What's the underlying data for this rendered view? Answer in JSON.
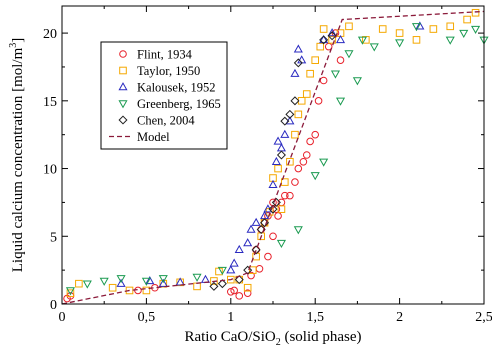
{
  "chart_data": {
    "type": "scatter",
    "title": "",
    "xlabel_parts": {
      "pre": "Ratio CaO/SiO",
      "sub": "2",
      "post": " (solid phase)"
    },
    "ylabel_parts": {
      "pre": "Liquid calcium concentration [mol/m",
      "sup": "3",
      "post": "]"
    },
    "xlim": [
      0,
      2.5
    ],
    "ylim": [
      0,
      22
    ],
    "x_ticks": [
      {
        "value": 0,
        "label": "0"
      },
      {
        "value": 0.5,
        "label": "0,5"
      },
      {
        "value": 1,
        "label": "1"
      },
      {
        "value": 1.5,
        "label": "1,5"
      },
      {
        "value": 2,
        "label": "2"
      },
      {
        "value": 2.5,
        "label": "2,5"
      }
    ],
    "y_ticks": [
      {
        "value": 0,
        "label": "0"
      },
      {
        "value": 5,
        "label": "5"
      },
      {
        "value": 10,
        "label": "10"
      },
      {
        "value": 15,
        "label": "15"
      },
      {
        "value": 20,
        "label": "20"
      }
    ],
    "grid": false,
    "legend_position": "top-left",
    "series": [
      {
        "name": "Flint, 1934",
        "marker": "circle",
        "color": "#e8202a",
        "points": [
          [
            0.03,
            0.4
          ],
          [
            0.05,
            0.6
          ],
          [
            0.45,
            1.0
          ],
          [
            0.55,
            1.2
          ],
          [
            1.0,
            0.9
          ],
          [
            1.02,
            1.0
          ],
          [
            1.05,
            0.6
          ],
          [
            1.1,
            0.8
          ],
          [
            1.12,
            2.1
          ],
          [
            1.15,
            4.0
          ],
          [
            1.17,
            2.6
          ],
          [
            1.18,
            5.5
          ],
          [
            1.2,
            6.0
          ],
          [
            1.22,
            6.5
          ],
          [
            1.22,
            3.5
          ],
          [
            1.25,
            5.0
          ],
          [
            1.27,
            7.0
          ],
          [
            1.28,
            6.5
          ],
          [
            1.3,
            7.5
          ],
          [
            1.32,
            8.0
          ],
          [
            1.35,
            8.0
          ],
          [
            1.38,
            9.0
          ],
          [
            1.4,
            10.0
          ],
          [
            1.43,
            10.5
          ],
          [
            1.45,
            11.0
          ],
          [
            1.47,
            12.0
          ],
          [
            1.5,
            12.5
          ],
          [
            1.52,
            15.0
          ],
          [
            1.55,
            16.5
          ],
          [
            1.58,
            19.0
          ],
          [
            1.62,
            20.0
          ],
          [
            1.65,
            18.0
          ],
          [
            1.25,
            7.5
          ]
        ]
      },
      {
        "name": "Taylor, 1950",
        "marker": "square",
        "color": "#f5a800",
        "points": [
          [
            0.05,
            0.8
          ],
          [
            0.1,
            1.5
          ],
          [
            0.3,
            1.2
          ],
          [
            0.4,
            1.0
          ],
          [
            0.5,
            1.0
          ],
          [
            0.6,
            1.5
          ],
          [
            0.7,
            1.6
          ],
          [
            0.8,
            1.3
          ],
          [
            0.9,
            1.7
          ],
          [
            0.93,
            2.4
          ],
          [
            1.0,
            1.8
          ],
          [
            1.05,
            1.8
          ],
          [
            1.1,
            1.2
          ],
          [
            1.13,
            2.5
          ],
          [
            1.15,
            3.5
          ],
          [
            1.18,
            5.0
          ],
          [
            1.2,
            6.0
          ],
          [
            1.23,
            6.8
          ],
          [
            1.25,
            9.3
          ],
          [
            1.28,
            10.0
          ],
          [
            1.3,
            7.0
          ],
          [
            1.32,
            9.0
          ],
          [
            1.35,
            10.5
          ],
          [
            1.38,
            12.5
          ],
          [
            1.4,
            14.0
          ],
          [
            1.42,
            15.0
          ],
          [
            1.45,
            15.5
          ],
          [
            1.47,
            17.0
          ],
          [
            1.5,
            18.0
          ],
          [
            1.53,
            19.0
          ],
          [
            1.55,
            20.3
          ],
          [
            1.6,
            19.5
          ],
          [
            1.65,
            20.0
          ],
          [
            1.7,
            20.5
          ],
          [
            1.8,
            19.5
          ],
          [
            1.9,
            20.3
          ],
          [
            2.0,
            20.0
          ],
          [
            2.1,
            19.5
          ],
          [
            2.2,
            20.3
          ],
          [
            2.3,
            20.5
          ],
          [
            2.4,
            21.0
          ],
          [
            2.45,
            21.5
          ]
        ]
      },
      {
        "name": "Kalousek, 1952",
        "marker": "triangle-up",
        "color": "#2a2ac0",
        "points": [
          [
            0.35,
            1.5
          ],
          [
            0.52,
            1.7
          ],
          [
            0.6,
            1.5
          ],
          [
            0.7,
            1.6
          ],
          [
            0.85,
            1.8
          ],
          [
            1.0,
            2.5
          ],
          [
            1.02,
            3.0
          ],
          [
            1.05,
            4.0
          ],
          [
            1.1,
            4.5
          ],
          [
            1.12,
            5.5
          ],
          [
            1.15,
            6.0
          ],
          [
            1.2,
            6.5
          ],
          [
            1.22,
            7.0
          ],
          [
            1.25,
            8.8
          ],
          [
            1.27,
            10.5
          ],
          [
            1.3,
            11.5
          ],
          [
            1.32,
            12.5
          ],
          [
            1.35,
            13.5
          ],
          [
            1.38,
            17.0
          ],
          [
            1.4,
            18.8
          ],
          [
            1.42,
            18.0
          ],
          [
            1.55,
            19.5
          ],
          [
            1.6,
            20.0
          ],
          [
            1.65,
            19.5
          ],
          [
            2.12,
            20.5
          ],
          [
            1.28,
            12.0
          ]
        ]
      },
      {
        "name": "Greenberg, 1965",
        "marker": "triangle-down",
        "color": "#1a9a50",
        "points": [
          [
            0.05,
            1.0
          ],
          [
            0.15,
            1.5
          ],
          [
            0.25,
            1.7
          ],
          [
            0.35,
            1.9
          ],
          [
            0.5,
            1.7
          ],
          [
            0.6,
            1.9
          ],
          [
            0.8,
            2.0
          ],
          [
            0.95,
            2.5
          ],
          [
            1.3,
            4.5
          ],
          [
            1.4,
            5.5
          ],
          [
            1.5,
            9.5
          ],
          [
            1.55,
            10.5
          ],
          [
            1.65,
            15.0
          ],
          [
            1.7,
            18.5
          ],
          [
            1.75,
            16.5
          ],
          [
            1.85,
            19.0
          ],
          [
            2.0,
            19.3
          ],
          [
            2.1,
            20.5
          ],
          [
            2.3,
            19.5
          ],
          [
            2.38,
            20.0
          ],
          [
            2.45,
            20.3
          ],
          [
            2.5,
            19.5
          ],
          [
            1.62,
            17.0
          ],
          [
            1.78,
            19.5
          ]
        ]
      },
      {
        "name": "Chen, 2004",
        "marker": "diamond",
        "color": "#202020",
        "points": [
          [
            0.9,
            1.3
          ],
          [
            0.95,
            1.5
          ],
          [
            1.05,
            1.8
          ],
          [
            1.1,
            2.5
          ],
          [
            1.15,
            4.0
          ],
          [
            1.18,
            5.5
          ],
          [
            1.2,
            6.0
          ],
          [
            1.25,
            7.0
          ],
          [
            1.27,
            7.5
          ],
          [
            1.3,
            11.0
          ],
          [
            1.32,
            13.5
          ],
          [
            1.35,
            14.0
          ],
          [
            1.38,
            15.0
          ],
          [
            1.4,
            17.8
          ],
          [
            1.55,
            19.5
          ],
          [
            1.6,
            19.8
          ]
        ]
      }
    ],
    "model": {
      "name": "Model",
      "color": "#8b1a3a",
      "style": "dashed",
      "x": [
        0,
        0.4,
        1.0,
        1.1,
        1.66,
        2.5
      ],
      "y": [
        0,
        1.0,
        1.8,
        2.3,
        21.0,
        21.6
      ]
    }
  }
}
